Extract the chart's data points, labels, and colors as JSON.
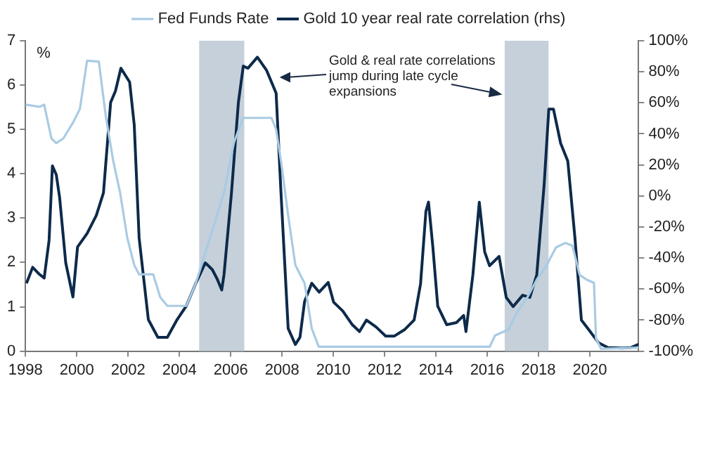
{
  "chart_data": {
    "type": "line",
    "ylabel": "%",
    "annotations": [
      "Gold & real rate correlations jump during late cycle expansions"
    ],
    "xlim": [
      1998,
      2021.9
    ],
    "xticks": [
      1998,
      2000,
      2002,
      2004,
      2006,
      2008,
      2010,
      2012,
      2014,
      2016,
      2018,
      2020
    ],
    "ylim": [
      0,
      7
    ],
    "yticks": [
      0,
      1,
      2,
      3,
      4,
      5,
      6,
      7
    ],
    "y2lim": [
      -100,
      100
    ],
    "y2ticks": [
      {
        "value": -100,
        "label": "-100%"
      },
      {
        "value": -80,
        "label": "-80%"
      },
      {
        "value": -60,
        "label": "-60%"
      },
      {
        "value": -40,
        "label": "-40%"
      },
      {
        "value": -20,
        "label": "-20%"
      },
      {
        "value": 0,
        "label": "0%"
      },
      {
        "value": 20,
        "label": "20%"
      },
      {
        "value": 40,
        "label": "40%"
      },
      {
        "value": 60,
        "label": "60%"
      },
      {
        "value": 80,
        "label": "80%"
      },
      {
        "value": 100,
        "label": "100%"
      }
    ],
    "grid": false,
    "legend": "top",
    "marker": "none",
    "line_style": "solid",
    "bands": [
      {
        "axis": "x",
        "from": 2004.77,
        "to": 2006.53,
        "color": "#c5d0da"
      },
      {
        "axis": "x",
        "from": 2016.68,
        "to": 2018.39,
        "color": "#c5d0da"
      }
    ],
    "series": [
      {
        "name": "Fed Funds Rate",
        "color": "#a9cbe3",
        "x": [
          1998,
          1998.55,
          1998.73,
          1999.01,
          1999.2,
          1999.48,
          1999.85,
          2000.12,
          2000.4,
          2000.86,
          2001.13,
          2001.42,
          2001.69,
          2001.97,
          2002.24,
          2002.43,
          2002.98,
          2003.25,
          2003.53,
          2004.27,
          2004.64,
          2005.19,
          2005.74,
          2006.12,
          2006.48,
          2007.59,
          2007.77,
          2007.96,
          2008.24,
          2008.52,
          2008.88,
          2009.16,
          2009.43,
          2016.1,
          2016.3,
          2016.83,
          2017.2,
          2017.57,
          2017.93,
          2018.3,
          2018.68,
          2019.05,
          2019.32,
          2019.6,
          2019.88,
          2020.16,
          2020.24,
          2020.44,
          2021.9
        ],
        "values": [
          5.56,
          5.51,
          5.56,
          4.8,
          4.69,
          4.8,
          5.15,
          5.46,
          6.55,
          6.53,
          5.3,
          4.29,
          3.57,
          2.55,
          1.94,
          1.73,
          1.73,
          1.22,
          1.02,
          1.02,
          1.53,
          2.55,
          3.57,
          4.69,
          5.26,
          5.26,
          5,
          4.29,
          3.06,
          1.94,
          1.53,
          0.51,
          0.1,
          0.1,
          0.35,
          0.49,
          0.91,
          1.22,
          1.61,
          1.92,
          2.34,
          2.44,
          2.38,
          1.72,
          1.61,
          1.54,
          0.28,
          0.05,
          0.08
        ]
      },
      {
        "name": "Gold 10 year real rate correlation (rhs)",
        "color": "#0d2a4a",
        "axis": "y2",
        "x": [
          1998.04,
          1998.28,
          1998.55,
          1998.73,
          1998.92,
          1999.05,
          1999.2,
          1999.33,
          1999.57,
          1999.85,
          2000.03,
          2000.4,
          2000.76,
          2001.04,
          2001.32,
          2001.51,
          2001.72,
          2002.06,
          2002.24,
          2002.43,
          2002.79,
          2003.16,
          2003.53,
          2003.91,
          2004.27,
          2004.64,
          2005.01,
          2005.28,
          2005.47,
          2005.65,
          2005.74,
          2006.03,
          2006.3,
          2006.49,
          2006.67,
          2007.04,
          2007.4,
          2007.77,
          2007.96,
          2008.24,
          2008.52,
          2008.7,
          2008.88,
          2009.16,
          2009.45,
          2009.8,
          2010.01,
          2010.37,
          2010.74,
          2011.02,
          2011.29,
          2011.67,
          2012.04,
          2012.38,
          2012.79,
          2013.15,
          2013.4,
          2013.61,
          2013.71,
          2013.88,
          2014.07,
          2014.42,
          2014.8,
          2015.08,
          2015.17,
          2015.44,
          2015.69,
          2015.9,
          2016.09,
          2016.46,
          2016.74,
          2017.01,
          2017.38,
          2017.66,
          2017.93,
          2018.22,
          2018.4,
          2018.58,
          2018.86,
          2019.14,
          2019.42,
          2019.67,
          2019.95,
          2020.34,
          2020.7,
          2021.26,
          2021.6,
          2021.9
        ],
        "values": [
          -56.3,
          -46,
          -50.6,
          -52.9,
          -28.6,
          19.4,
          13.7,
          -0.9,
          -43.1,
          -65.1,
          -32.9,
          -24.3,
          -12.6,
          2,
          60.3,
          67.7,
          82.3,
          73.4,
          45.7,
          -27.1,
          -79.7,
          -91.1,
          -91.1,
          -79.7,
          -70.9,
          -56.3,
          -43.1,
          -47.4,
          -53.4,
          -60.6,
          -50.6,
          2,
          60.3,
          83.7,
          82.3,
          89.4,
          80.9,
          66.3,
          2,
          -85.4,
          -95.7,
          -91.1,
          -68,
          -56.3,
          -62,
          -55.7,
          -68.4,
          -74.2,
          -83,
          -87.4,
          -80,
          -84.5,
          -90.3,
          -90.3,
          -86,
          -80,
          -56.7,
          -9.8,
          -4,
          -33,
          -71,
          -83,
          -81.6,
          -77,
          -87.4,
          -50.8,
          -4,
          -36,
          -45,
          -39,
          -65.4,
          -71.3,
          -64,
          -65.4,
          -50.8,
          7.8,
          56,
          56,
          34,
          22.4,
          -27.4,
          -80,
          -86,
          -94.7,
          -97.7,
          -98,
          -97.7,
          -95.6
        ]
      }
    ]
  }
}
